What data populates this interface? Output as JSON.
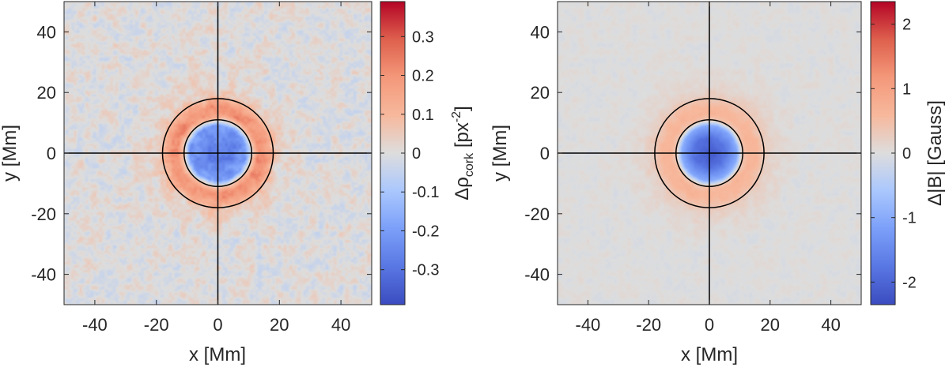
{
  "chart_data": [
    {
      "type": "heatmap",
      "title": "",
      "xlabel": "x [Mm]",
      "ylabel": "y [Mm]",
      "xlim": [
        -50,
        50
      ],
      "ylim": [
        -50,
        50
      ],
      "xticks": [
        -40,
        -20,
        0,
        20,
        40
      ],
      "yticks": [
        -40,
        -20,
        0,
        20,
        40
      ],
      "crosshair": {
        "x": 0,
        "y": 0
      },
      "circles_radius": [
        11,
        18
      ],
      "map": {
        "description_values": "radial profile of the mapped quantity vs distance r (Mm) from center",
        "profile_r": [
          0,
          5,
          9,
          11,
          13,
          15,
          17,
          19,
          22,
          30
        ],
        "profile_value": [
          -0.26,
          -0.25,
          -0.2,
          0.05,
          0.2,
          0.2,
          0.13,
          0.05,
          0.02,
          0.0
        ],
        "noise_amplitude": 0.06
      },
      "colorbar": {
        "label_prefix": "Δρ",
        "label_subscript": "cork",
        "label_unit": " [px",
        "label_exponent": "-2",
        "label_close": "]",
        "range": [
          -0.39,
          0.39
        ],
        "ticks": [
          0.3,
          0.2,
          0.1,
          0,
          -0.1,
          -0.2,
          -0.3
        ],
        "tick_labels": [
          "0.3",
          "0.2",
          "0.1",
          "0",
          "-0.1",
          "-0.2",
          "-0.3"
        ]
      }
    },
    {
      "type": "heatmap",
      "title": "",
      "xlabel": "x [Mm]",
      "ylabel": "y [Mm]",
      "xlim": [
        -50,
        50
      ],
      "ylim": [
        -50,
        50
      ],
      "xticks": [
        -40,
        -20,
        0,
        20,
        40
      ],
      "yticks": [
        -40,
        -20,
        0,
        20,
        40
      ],
      "crosshair": {
        "x": 0,
        "y": 0
      },
      "circles_radius": [
        11,
        18
      ],
      "map": {
        "description_values": "radial profile of the mapped quantity vs distance r (Mm) from center",
        "profile_r": [
          0,
          5,
          9,
          11,
          13,
          15,
          17,
          19,
          22,
          30
        ],
        "profile_value": [
          -2.2,
          -1.8,
          -1.0,
          0.4,
          0.65,
          0.6,
          0.45,
          0.25,
          0.12,
          0.0
        ],
        "noise_amplitude": 0.12
      },
      "colorbar": {
        "label": "Δ|B| [Gauss]",
        "range": [
          -2.35,
          2.35
        ],
        "ticks": [
          2,
          1,
          0,
          -1,
          -2
        ],
        "tick_labels": [
          "2",
          "1",
          "0",
          "-1",
          "-2"
        ]
      }
    }
  ],
  "colors": {
    "low": "#3b4cc0",
    "mid": "#dddddd",
    "high": "#b40426",
    "axis": "#262626",
    "crosshair": "#000000"
  }
}
